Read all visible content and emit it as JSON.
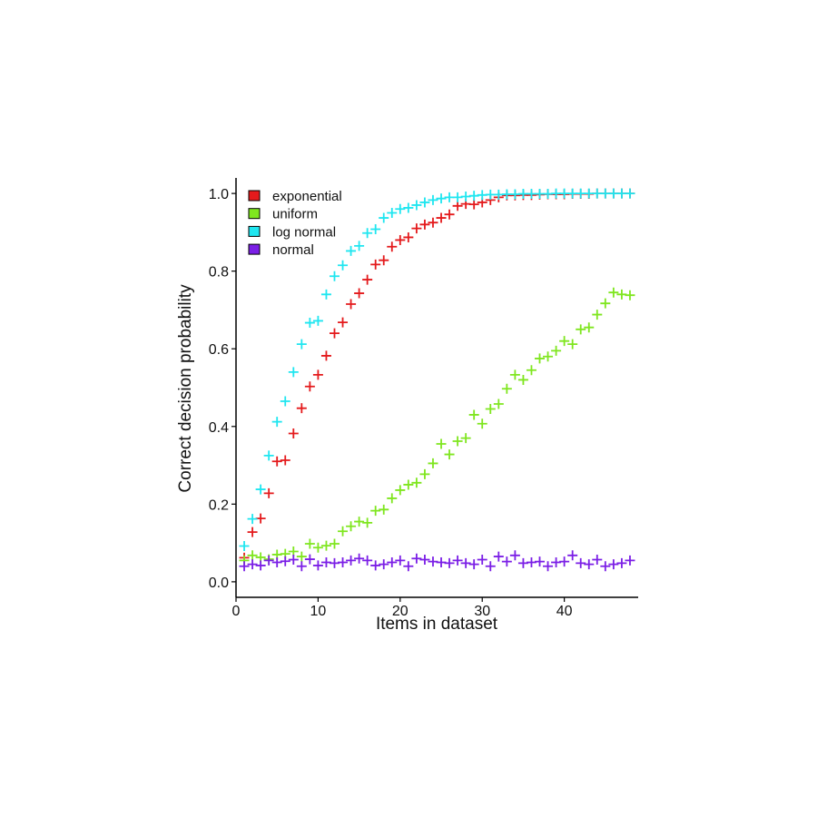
{
  "chart_data": {
    "type": "scatter",
    "title": "",
    "xlabel": "Items in dataset",
    "ylabel": "Correct decision probability",
    "xlim": [
      0,
      49
    ],
    "ylim": [
      -0.04,
      1.04
    ],
    "xticks": [
      0,
      10,
      20,
      30,
      40
    ],
    "yticks": [
      0.0,
      0.2,
      0.4,
      0.6,
      0.8,
      1.0
    ],
    "xtick_labels": [
      "0",
      "10",
      "20",
      "30",
      "40"
    ],
    "ytick_labels": [
      "0.0",
      "0.2",
      "0.4",
      "0.6",
      "0.8",
      "1.0"
    ],
    "grid": false,
    "legend_position": "top-left",
    "marker": "plus",
    "x": [
      1,
      2,
      3,
      4,
      5,
      6,
      7,
      8,
      9,
      10,
      11,
      12,
      13,
      14,
      15,
      16,
      17,
      18,
      19,
      20,
      21,
      22,
      23,
      24,
      25,
      26,
      27,
      28,
      29,
      30,
      31,
      32,
      33,
      34,
      35,
      36,
      37,
      38,
      39,
      40,
      41,
      42,
      43,
      44,
      45,
      46,
      47,
      48
    ],
    "series": [
      {
        "name": "exponential",
        "color": "#e41a1c",
        "values": [
          0.062,
          0.128,
          0.163,
          0.228,
          0.31,
          0.313,
          0.382,
          0.447,
          0.503,
          0.533,
          0.582,
          0.64,
          0.668,
          0.715,
          0.743,
          0.778,
          0.817,
          0.828,
          0.863,
          0.88,
          0.887,
          0.91,
          0.92,
          0.925,
          0.937,
          0.946,
          0.968,
          0.973,
          0.972,
          0.977,
          0.983,
          0.99,
          0.995,
          0.995,
          0.996,
          0.996,
          0.997,
          0.998,
          0.998,
          0.998,
          0.999,
          0.999,
          0.999,
          1.0,
          1.0,
          1.0,
          1.0,
          1.0
        ]
      },
      {
        "name": "uniform",
        "color": "#7fe61f",
        "values": [
          0.055,
          0.068,
          0.063,
          0.058,
          0.07,
          0.072,
          0.078,
          0.065,
          0.098,
          0.088,
          0.093,
          0.098,
          0.13,
          0.143,
          0.155,
          0.152,
          0.183,
          0.186,
          0.215,
          0.236,
          0.25,
          0.255,
          0.277,
          0.305,
          0.355,
          0.328,
          0.362,
          0.37,
          0.43,
          0.407,
          0.445,
          0.458,
          0.497,
          0.533,
          0.52,
          0.545,
          0.575,
          0.58,
          0.595,
          0.62,
          0.612,
          0.65,
          0.655,
          0.688,
          0.717,
          0.745,
          0.74,
          0.738
        ]
      },
      {
        "name": "log normal",
        "color": "#1fe6f0",
        "values": [
          0.092,
          0.162,
          0.238,
          0.325,
          0.412,
          0.465,
          0.54,
          0.612,
          0.667,
          0.672,
          0.74,
          0.787,
          0.815,
          0.852,
          0.865,
          0.898,
          0.908,
          0.937,
          0.95,
          0.96,
          0.963,
          0.97,
          0.977,
          0.983,
          0.987,
          0.99,
          0.99,
          0.992,
          0.994,
          0.996,
          0.997,
          0.997,
          0.998,
          0.998,
          0.999,
          0.999,
          0.999,
          0.999,
          1.0,
          1.0,
          1.0,
          1.0,
          1.0,
          1.0,
          1.0,
          1.0,
          1.0,
          1.0
        ]
      },
      {
        "name": "normal",
        "color": "#7b1fe6",
        "values": [
          0.04,
          0.045,
          0.042,
          0.055,
          0.05,
          0.053,
          0.057,
          0.04,
          0.058,
          0.042,
          0.05,
          0.048,
          0.05,
          0.055,
          0.06,
          0.055,
          0.042,
          0.045,
          0.05,
          0.055,
          0.04,
          0.06,
          0.057,
          0.052,
          0.05,
          0.048,
          0.055,
          0.048,
          0.045,
          0.057,
          0.04,
          0.065,
          0.052,
          0.068,
          0.048,
          0.05,
          0.052,
          0.04,
          0.05,
          0.052,
          0.068,
          0.048,
          0.045,
          0.057,
          0.04,
          0.045,
          0.048,
          0.055
        ]
      }
    ]
  }
}
